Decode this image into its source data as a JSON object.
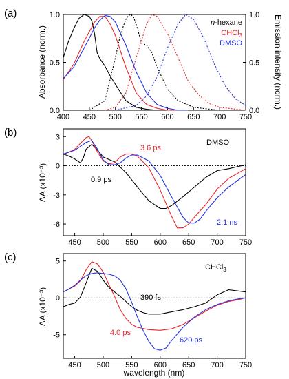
{
  "colors": {
    "black": "#000000",
    "red": "#e8262b",
    "blue": "#2233dd"
  },
  "figure": {
    "xlabel": "wavelength (nm)"
  },
  "chart_data": [
    {
      "panel": "(a)",
      "type": "line",
      "xlim": [
        400,
        750
      ],
      "ylim": [
        0,
        1.0
      ],
      "x_ticks": [
        400,
        450,
        500,
        550,
        600,
        650,
        700,
        750
      ],
      "y_ticks": [
        0,
        0.5,
        1.0
      ],
      "y_tick_labels": [
        "0.0",
        "0.5",
        "1.0"
      ],
      "ylabel": "Absorbance (norm.)",
      "y2label": "Emission intensity (norm.)",
      "y2_ticks": [
        0,
        0.5,
        1.0
      ],
      "y2_tick_labels": [
        "0.0",
        "0.5",
        "1.0"
      ],
      "legend": {
        "position": "top-right",
        "entries": [
          "n-hexane",
          "CHCl3",
          "DMSO"
        ]
      },
      "series": [
        {
          "name": "n-hexane",
          "kind": "absorbance",
          "color": "black",
          "dash": "solid",
          "x": [
            400,
            410,
            420,
            430,
            440,
            450,
            455,
            460,
            465,
            470,
            480,
            490,
            500,
            520,
            540,
            560,
            580,
            600
          ],
          "y": [
            0.55,
            0.72,
            0.85,
            0.96,
            1.0,
            0.98,
            0.93,
            0.8,
            0.6,
            0.54,
            0.46,
            0.36,
            0.27,
            0.1,
            0.03,
            0.01,
            0,
            0
          ]
        },
        {
          "name": "CHCl3",
          "kind": "absorbance",
          "color": "red",
          "dash": "solid",
          "x": [
            400,
            420,
            440,
            460,
            470,
            480,
            490,
            500,
            520,
            540,
            560,
            580,
            600,
            620
          ],
          "y": [
            0.32,
            0.48,
            0.72,
            0.92,
            0.98,
            0.98,
            0.9,
            0.78,
            0.45,
            0.18,
            0.06,
            0.02,
            0,
            0
          ]
        },
        {
          "name": "DMSO",
          "kind": "absorbance",
          "color": "blue",
          "dash": "solid",
          "x": [
            400,
            420,
            440,
            460,
            470,
            480,
            490,
            500,
            520,
            540,
            560,
            580,
            600,
            620,
            640
          ],
          "y": [
            0.33,
            0.45,
            0.65,
            0.86,
            0.94,
            0.99,
            0.98,
            0.92,
            0.68,
            0.4,
            0.18,
            0.06,
            0.02,
            0,
            0
          ]
        },
        {
          "name": "n-hexane",
          "kind": "emission",
          "color": "black",
          "dash": "dotted",
          "x": [
            450,
            480,
            500,
            510,
            520,
            525,
            530,
            535,
            540,
            550,
            560,
            570,
            580,
            600,
            620,
            650,
            700
          ],
          "y": [
            0,
            0.1,
            0.55,
            0.8,
            0.95,
            0.99,
            1.0,
            0.97,
            0.9,
            0.7,
            0.68,
            0.6,
            0.45,
            0.22,
            0.1,
            0.03,
            0
          ]
        },
        {
          "name": "CHCl3",
          "kind": "emission",
          "color": "red",
          "dash": "dotted",
          "x": [
            480,
            500,
            520,
            540,
            560,
            570,
            580,
            600,
            620,
            640,
            660,
            680,
            700,
            750
          ],
          "y": [
            0,
            0.03,
            0.18,
            0.55,
            0.9,
            1.0,
            0.98,
            0.8,
            0.55,
            0.3,
            0.16,
            0.07,
            0.03,
            0
          ]
        },
        {
          "name": "DMSO",
          "kind": "emission",
          "color": "blue",
          "dash": "dotted",
          "x": [
            500,
            540,
            560,
            580,
            600,
            620,
            635,
            650,
            670,
            690,
            710,
            730,
            750
          ],
          "y": [
            0,
            0.05,
            0.15,
            0.35,
            0.65,
            0.9,
            1.0,
            0.95,
            0.75,
            0.48,
            0.26,
            0.12,
            0.05
          ]
        }
      ]
    },
    {
      "panel": "(b)",
      "type": "line",
      "xlim": [
        430,
        750
      ],
      "ylim": [
        -7.2,
        3.8
      ],
      "x_ticks": [
        450,
        500,
        550,
        600,
        650,
        700,
        750
      ],
      "y_ticks": [
        3,
        0,
        -3,
        -6
      ],
      "y_tick_labels": [
        "3",
        "0",
        "-3",
        "-6"
      ],
      "ylabel": "ΔA (x10⁻³)",
      "zero_line": true,
      "solvent_label": "DMSO",
      "annotations": [
        {
          "text": "0.9 ps",
          "color": "black"
        },
        {
          "text": "3.6 ps",
          "color": "red"
        },
        {
          "text": "2.1 ns",
          "color": "blue"
        }
      ],
      "series": [
        {
          "name": "0.9 ps",
          "color": "black",
          "x": [
            430,
            440,
            450,
            460,
            465,
            470,
            480,
            490,
            500,
            520,
            540,
            560,
            580,
            600,
            610,
            620,
            640,
            660,
            680,
            700,
            720,
            750
          ],
          "y": [
            1.2,
            1.0,
            0.7,
            0.3,
            0.8,
            1.7,
            2.2,
            1.6,
            0.9,
            0.4,
            -0.7,
            -2.2,
            -3.6,
            -4.4,
            -4.4,
            -4.1,
            -3.2,
            -2.2,
            -1.2,
            -0.5,
            -0.3,
            0.1
          ]
        },
        {
          "name": "3.6 ps",
          "color": "red",
          "x": [
            430,
            440,
            450,
            460,
            470,
            475,
            480,
            490,
            500,
            510,
            520,
            530,
            540,
            550,
            560,
            580,
            600,
            620,
            630,
            640,
            650,
            660,
            680,
            700,
            720,
            750
          ],
          "y": [
            1.2,
            1.4,
            1.7,
            2.3,
            2.9,
            3.0,
            2.6,
            1.4,
            0.5,
            0.2,
            0.3,
            0.9,
            1.2,
            1.2,
            1.0,
            -0.2,
            -2.5,
            -5.2,
            -6.4,
            -6.4,
            -6.0,
            -5.3,
            -4.0,
            -2.4,
            -1.3,
            -0.3
          ]
        },
        {
          "name": "2.1 ns",
          "color": "blue",
          "x": [
            430,
            440,
            450,
            460,
            470,
            480,
            490,
            500,
            510,
            520,
            530,
            540,
            550,
            560,
            580,
            600,
            620,
            640,
            650,
            660,
            670,
            680,
            700,
            720,
            750
          ],
          "y": [
            1.2,
            1.4,
            1.6,
            2.0,
            2.4,
            2.6,
            1.7,
            0.6,
            0.1,
            0.1,
            0.3,
            0.8,
            1.1,
            1.1,
            0.5,
            -1.0,
            -3.2,
            -5.3,
            -5.9,
            -5.9,
            -5.5,
            -4.7,
            -3.3,
            -2.2,
            -0.9
          ]
        }
      ]
    },
    {
      "panel": "(c)",
      "type": "line",
      "xlim": [
        430,
        750
      ],
      "ylim": [
        -8.2,
        6.0
      ],
      "x_ticks": [
        450,
        500,
        550,
        600,
        650,
        700,
        750
      ],
      "y_ticks": [
        5,
        0,
        -5
      ],
      "y_tick_labels": [
        "5",
        "0",
        "-5"
      ],
      "ylabel": "ΔA (x10⁻³)",
      "xlabel": "wavelength (nm)",
      "zero_line": true,
      "solvent_label": "CHCl3",
      "annotations": [
        {
          "text": "390 fs",
          "color": "black"
        },
        {
          "text": "4.0 ps",
          "color": "red"
        },
        {
          "text": "620 ps",
          "color": "blue"
        }
      ],
      "series": [
        {
          "name": "390 fs",
          "color": "black",
          "x": [
            430,
            440,
            450,
            460,
            470,
            480,
            490,
            500,
            510,
            520,
            530,
            540,
            550,
            560,
            570,
            580,
            600,
            620,
            640,
            660,
            680,
            700,
            720,
            740,
            750
          ],
          "y": [
            -1.2,
            -0.9,
            -0.7,
            0.1,
            2.0,
            4.0,
            3.6,
            2.4,
            1.4,
            0.8,
            0.2,
            -0.5,
            -1.2,
            -1.7,
            -2.0,
            -2.2,
            -2.2,
            -1.9,
            -1.6,
            -1.2,
            -0.7,
            0.4,
            1.1,
            0.9,
            0.8
          ]
        },
        {
          "name": "4.0 ps",
          "color": "red",
          "x": [
            430,
            440,
            450,
            460,
            470,
            480,
            490,
            500,
            510,
            520,
            530,
            540,
            550,
            560,
            580,
            600,
            620,
            640,
            660,
            680,
            700,
            720,
            740,
            750
          ],
          "y": [
            0.8,
            1.2,
            1.6,
            2.3,
            3.8,
            4.9,
            4.6,
            3.5,
            1.8,
            0.2,
            -1.6,
            -2.8,
            -3.6,
            -4.0,
            -4.3,
            -4.4,
            -4.2,
            -3.6,
            -2.7,
            -1.8,
            -1.0,
            -0.5,
            -0.2,
            0
          ]
        },
        {
          "name": "620 ps",
          "color": "blue",
          "x": [
            430,
            440,
            450,
            460,
            470,
            480,
            490,
            500,
            510,
            520,
            530,
            540,
            550,
            560,
            570,
            580,
            590,
            600,
            610,
            620,
            640,
            660,
            680,
            700,
            720,
            740,
            750
          ],
          "y": [
            0.8,
            1.2,
            1.7,
            2.4,
            3.0,
            3.3,
            3.4,
            3.3,
            3.2,
            3.0,
            2.4,
            1.2,
            -0.6,
            -2.6,
            -4.4,
            -5.9,
            -6.9,
            -7.1,
            -6.8,
            -5.8,
            -4.0,
            -2.6,
            -1.6,
            -0.9,
            -0.4,
            -0.1,
            0
          ]
        }
      ]
    }
  ]
}
